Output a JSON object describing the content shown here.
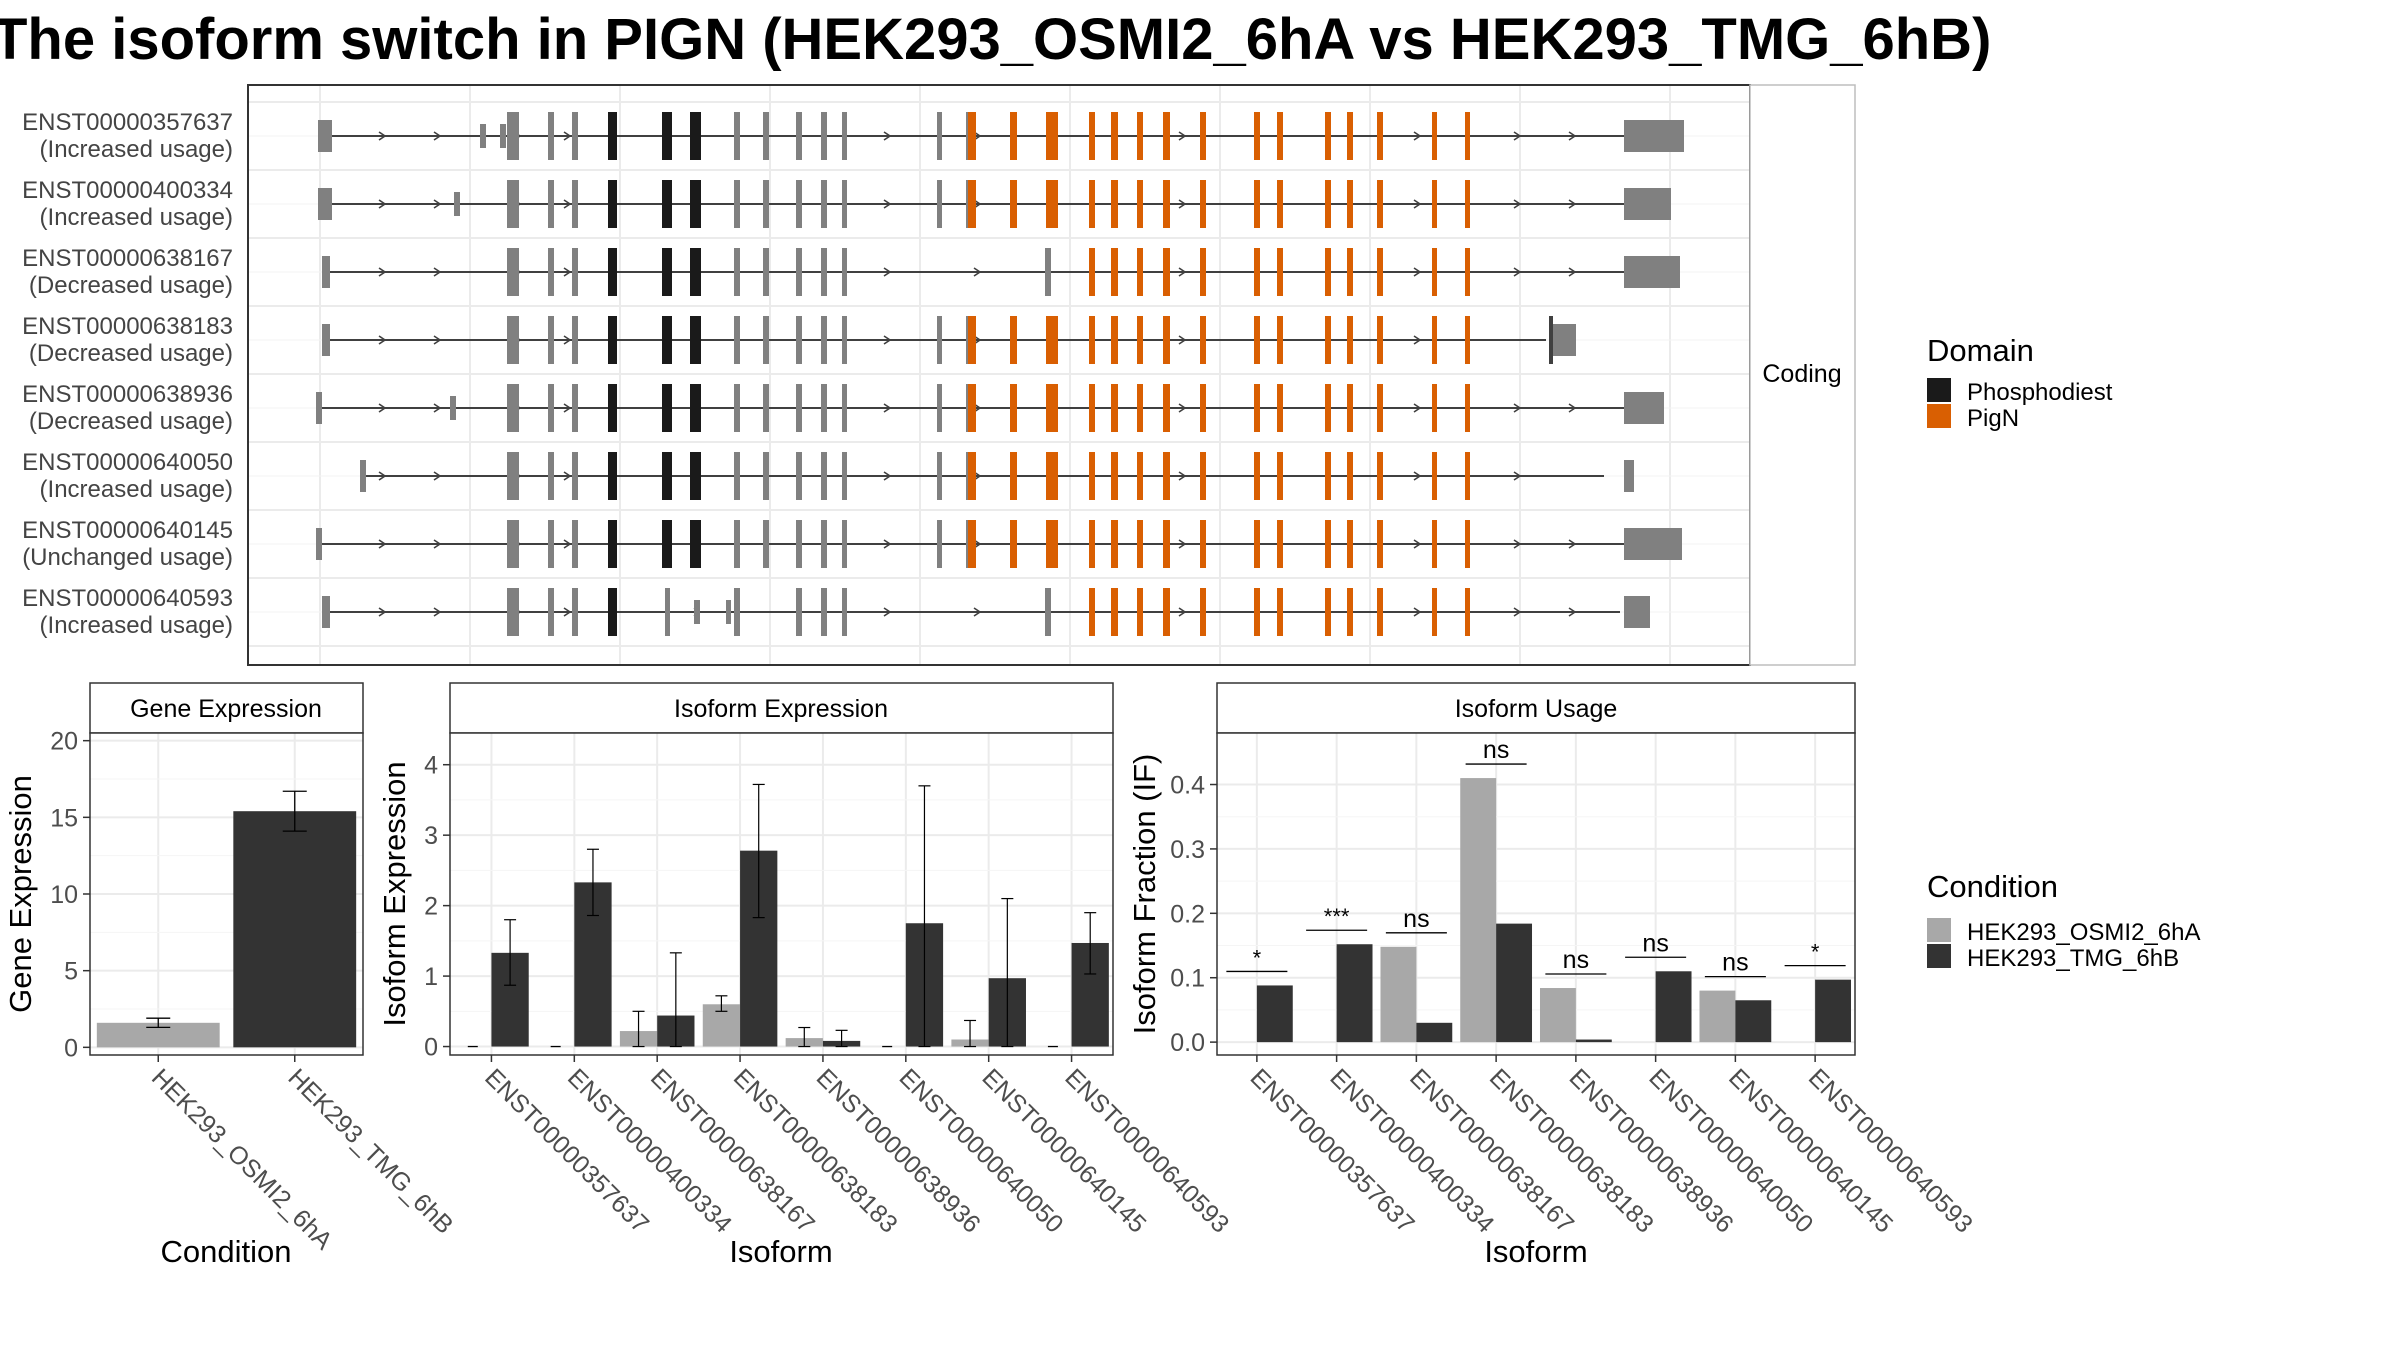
{
  "title": "The isoform switch in PIGN (HEK293_OSMI2_6hA vs HEK293_TMG_6hB)",
  "colors": {
    "intron": "#404040",
    "noncoding_exon": "#808080",
    "phosphodiest": "#1a1a1a",
    "pign": "#d95f02",
    "condition_a": "#a8a8a8",
    "condition_b": "#333333"
  },
  "chart_data": [
    {
      "type": "structure",
      "facet_label": "Coding",
      "transcripts": [
        {
          "id": "ENST00000357637",
          "usage": "(Increased usage)"
        },
        {
          "id": "ENST00000400334",
          "usage": "(Increased usage)"
        },
        {
          "id": "ENST00000638167",
          "usage": "(Decreased usage)"
        },
        {
          "id": "ENST00000638183",
          "usage": "(Decreased usage)"
        },
        {
          "id": "ENST00000638936",
          "usage": "(Decreased usage)"
        },
        {
          "id": "ENST00000640050",
          "usage": "(Increased usage)"
        },
        {
          "id": "ENST00000640145",
          "usage": "(Unchanged usage)"
        },
        {
          "id": "ENST00000640593",
          "usage": "(Increased usage)"
        }
      ],
      "legend": {
        "title": "Domain",
        "entries": [
          "Phosphodiest",
          "PigN"
        ]
      }
    },
    {
      "type": "bar",
      "title": "Gene Expression",
      "xlabel": "Condition",
      "ylabel": "Gene Expression",
      "ylim": [
        -0.5,
        20.5
      ],
      "yticks": [
        0,
        5,
        10,
        15,
        20
      ],
      "categories": [
        "HEK293_OSMI2_6hA",
        "HEK293_TMG_6hB"
      ],
      "values": [
        1.6,
        15.4
      ],
      "err_low": [
        1.3,
        14.1
      ],
      "err_high": [
        1.9,
        16.7
      ]
    },
    {
      "type": "bar",
      "title": "Isoform Expression",
      "xlabel": "Isoform",
      "ylabel": "Isoform Expression",
      "ylim": [
        -0.12,
        4.45
      ],
      "yticks": [
        0,
        1,
        2,
        3,
        4
      ],
      "categories": [
        "ENST00000357637",
        "ENST00000400334",
        "ENST00000638167",
        "ENST00000638183",
        "ENST00000638936",
        "ENST00000640050",
        "ENST00000640145",
        "ENST00000640593"
      ],
      "series": [
        {
          "name": "HEK293_OSMI2_6hA",
          "values": [
            0,
            0,
            0.22,
            0.6,
            0.12,
            0,
            0.1,
            0
          ],
          "err_low": [
            0,
            0,
            0.0,
            0.5,
            0.0,
            0,
            0.0,
            0
          ],
          "err_high": [
            0,
            0,
            0.5,
            0.72,
            0.27,
            0,
            0.37,
            0
          ]
        },
        {
          "name": "HEK293_TMG_6hB",
          "values": [
            1.33,
            2.33,
            0.44,
            2.78,
            0.08,
            1.75,
            0.97,
            1.47
          ],
          "err_low": [
            0.87,
            1.86,
            0.0,
            1.83,
            0.0,
            0.0,
            0.0,
            1.03
          ],
          "err_high": [
            1.8,
            2.8,
            1.33,
            3.72,
            0.23,
            3.7,
            2.1,
            1.9
          ]
        }
      ]
    },
    {
      "type": "bar",
      "title": "Isoform Usage",
      "xlabel": "Isoform",
      "ylabel": "Isoform Fraction (IF)",
      "ylim": [
        -0.02,
        0.48
      ],
      "yticks": [
        "0.0",
        "0.1",
        "0.2",
        "0.3",
        "0.4"
      ],
      "categories": [
        "ENST00000357637",
        "ENST00000400334",
        "ENST00000638167",
        "ENST00000638183",
        "ENST00000638936",
        "ENST00000640050",
        "ENST00000640145",
        "ENST00000640593"
      ],
      "series": [
        {
          "name": "HEK293_OSMI2_6hA",
          "values": [
            0,
            0,
            0.148,
            0.41,
            0.084,
            0,
            0.08,
            0
          ]
        },
        {
          "name": "HEK293_TMG_6hB",
          "values": [
            0.088,
            0.152,
            0.03,
            0.184,
            0.004,
            0.11,
            0.065,
            0.097
          ]
        }
      ],
      "significance": [
        "*",
        "***",
        "ns",
        "ns",
        "ns",
        "ns",
        "ns",
        "*"
      ],
      "legend": {
        "title": "Condition",
        "entries": [
          "HEK293_OSMI2_6hA",
          "HEK293_TMG_6hB"
        ]
      }
    }
  ]
}
